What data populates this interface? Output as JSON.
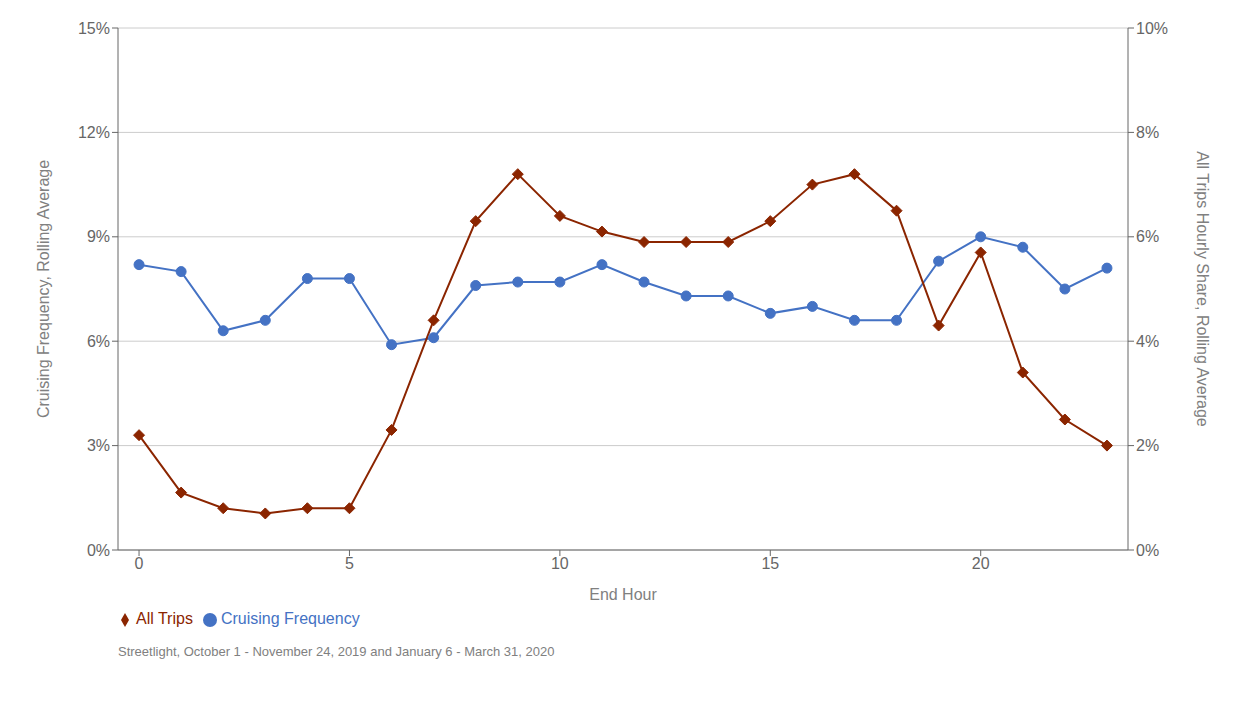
{
  "chart_data": {
    "type": "line",
    "xlabel": "End Hour",
    "ylabel": "Cruising Frequency, Rolling Average",
    "y2label": "All Trips Hourly Share, Rolling Average",
    "x": [
      0,
      1,
      2,
      3,
      4,
      5,
      6,
      7,
      8,
      9,
      10,
      11,
      12,
      13,
      14,
      15,
      16,
      17,
      18,
      19,
      20,
      21,
      22,
      23
    ],
    "xlim": [
      -0.5,
      23.5
    ],
    "xticks": [
      0,
      5,
      10,
      15,
      20
    ],
    "ylim": [
      0,
      0.15
    ],
    "yticks": [
      {
        "value": 0,
        "label": "0%"
      },
      {
        "value": 0.03,
        "label": "3%"
      },
      {
        "value": 0.06,
        "label": "6%"
      },
      {
        "value": 0.09,
        "label": "9%"
      },
      {
        "value": 0.12,
        "label": "12%"
      },
      {
        "value": 0.15,
        "label": "15%"
      }
    ],
    "y2lim": [
      0,
      0.1
    ],
    "y2ticks": [
      {
        "value": 0,
        "label": "0%"
      },
      {
        "value": 0.02,
        "label": "2%"
      },
      {
        "value": 0.04,
        "label": "4%"
      },
      {
        "value": 0.06,
        "label": "6%"
      },
      {
        "value": 0.08,
        "label": "8%"
      },
      {
        "value": 0.1,
        "label": "10%"
      }
    ],
    "series": [
      {
        "name": "Cruising Frequency",
        "color": "#4472c4",
        "marker": "circle",
        "values": [
          0.082,
          0.08,
          0.063,
          0.066,
          0.078,
          0.078,
          0.059,
          0.061,
          0.076,
          0.077,
          0.077,
          0.082,
          0.077,
          0.073,
          0.073,
          0.068,
          0.07,
          0.066,
          0.066,
          0.083,
          0.09,
          0.087,
          0.075,
          0.081
        ]
      },
      {
        "name": "All Trips",
        "color": "#8b2500",
        "marker": "diamond",
        "axis": "y2",
        "values": [
          0.022,
          0.011,
          0.008,
          0.007,
          0.008,
          0.008,
          0.023,
          0.044,
          0.063,
          0.072,
          0.064,
          0.061,
          0.059,
          0.059,
          0.059,
          0.063,
          0.07,
          0.072,
          0.065,
          0.043,
          0.057,
          0.034,
          0.025,
          0.02
        ]
      }
    ],
    "grid": true,
    "legend": "bottom",
    "annotations": [
      "Streetlight, October 1 - November 24, 2019 and January 6 - March 31, 2020"
    ]
  }
}
